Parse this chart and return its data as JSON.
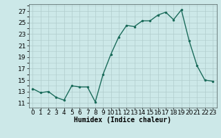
{
  "x": [
    0,
    1,
    2,
    3,
    4,
    5,
    6,
    7,
    8,
    9,
    10,
    11,
    12,
    13,
    14,
    15,
    16,
    17,
    18,
    19,
    20,
    21,
    22,
    23
  ],
  "y": [
    13.5,
    12.8,
    13.0,
    12.0,
    11.5,
    14.0,
    13.8,
    13.8,
    11.2,
    16.0,
    19.5,
    22.5,
    24.5,
    24.3,
    25.3,
    25.3,
    26.3,
    26.8,
    25.5,
    27.2,
    21.8,
    17.5,
    15.0,
    14.8
  ],
  "line_color": "#1a6b5a",
  "marker": ".",
  "marker_size": 3,
  "linewidth": 1.0,
  "bg_color": "#cce8e8",
  "grid_color": "#b0cccc",
  "xlabel": "Humidex (Indice chaleur)",
  "xlabel_fontsize": 7,
  "ylabel_ticks": [
    11,
    13,
    15,
    17,
    19,
    21,
    23,
    25,
    27
  ],
  "ylim": [
    10.2,
    28.2
  ],
  "xlim": [
    -0.5,
    23.5
  ],
  "tick_fontsize": 6.5
}
